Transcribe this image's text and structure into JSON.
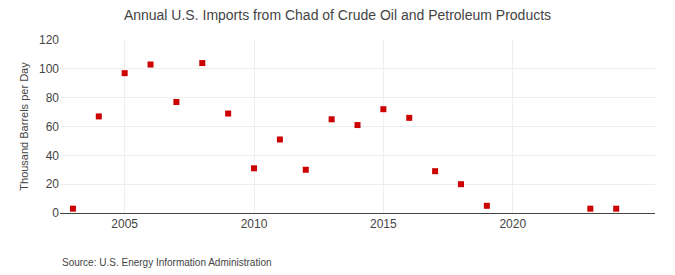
{
  "chart_data": {
    "type": "scatter",
    "title": "Annual U.S. Imports from Chad of Crude Oil and Petroleum Products",
    "ylabel": "Thousand Barrels per Day",
    "annotations": [
      "Source: U.S. Energy Information Administration"
    ],
    "x": [
      2003,
      2004,
      2005,
      2006,
      2007,
      2008,
      2009,
      2010,
      2011,
      2012,
      2013,
      2014,
      2015,
      2016,
      2017,
      2018,
      2019,
      2023,
      2024
    ],
    "values": [
      3,
      67,
      97,
      103,
      77,
      104,
      69,
      31,
      51,
      30,
      65,
      61,
      72,
      66,
      29,
      20,
      5,
      3,
      3
    ],
    "color": "#cc0000",
    "marker": "square",
    "xlim": [
      2002.5,
      2025.5
    ],
    "xticks": [
      2005,
      2010,
      2015,
      2020
    ],
    "ylim": [
      0,
      120
    ],
    "yticks": [
      0,
      20,
      40,
      60,
      80,
      100,
      120
    ],
    "grid": true
  }
}
